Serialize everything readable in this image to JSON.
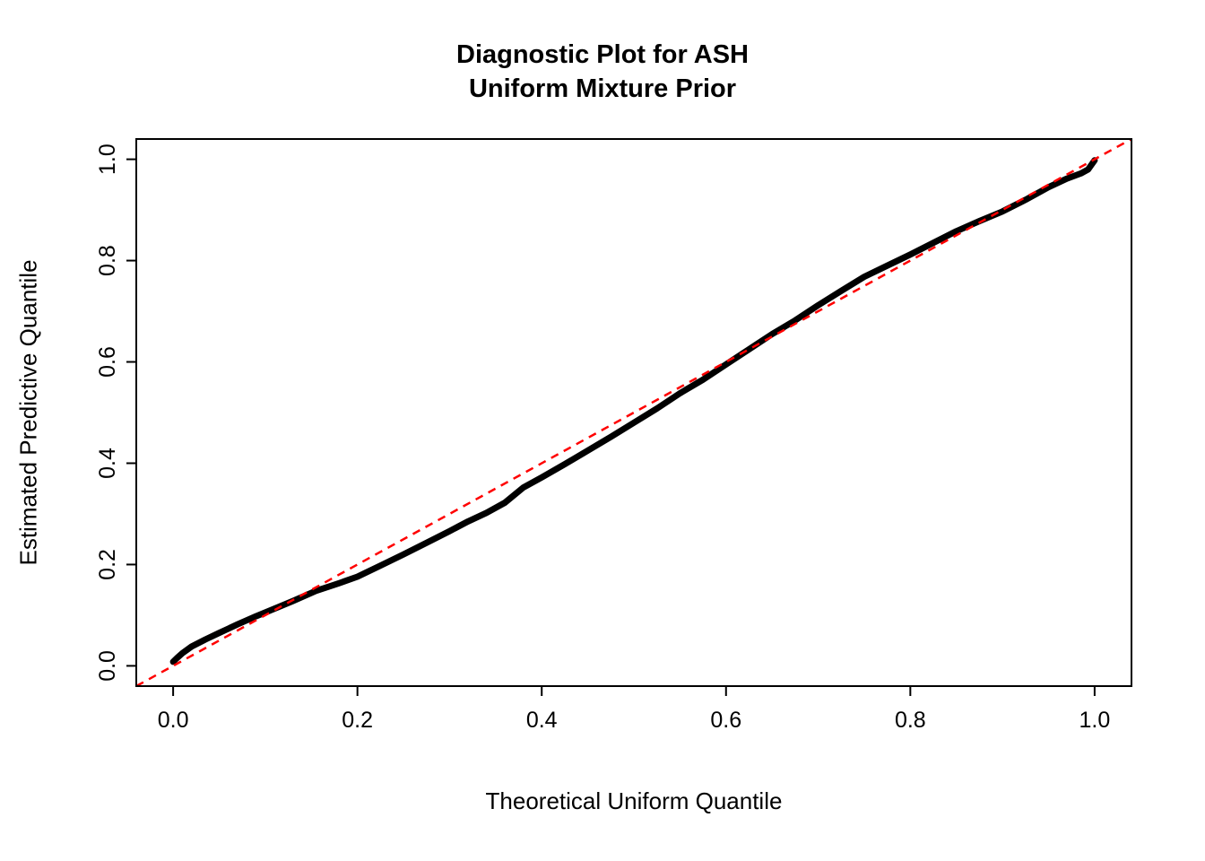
{
  "title": {
    "line1": "Diagnostic Plot for ASH",
    "line2": "Uniform Mixture Prior"
  },
  "chart_data": {
    "type": "line",
    "title": "Diagnostic Plot for ASH\nUniform Mixture Prior",
    "xlabel": "Theoretical Uniform Quantile",
    "ylabel": "Estimated Predictive Quantile",
    "xlim": [
      -0.04,
      1.04
    ],
    "ylim": [
      -0.04,
      1.04
    ],
    "xticks": [
      0.0,
      0.2,
      0.4,
      0.6,
      0.8,
      1.0
    ],
    "yticks": [
      0.0,
      0.2,
      0.4,
      0.6,
      0.8,
      1.0
    ],
    "grid": false,
    "legend": "none",
    "colors": {
      "curve": "#000000",
      "reference": "#FF0000",
      "box": "#000000"
    },
    "series": [
      {
        "name": "estimated-predictive-quantiles",
        "style": "thick-solid",
        "color": "#000000",
        "x": [
          0.0,
          0.004,
          0.01,
          0.02,
          0.035,
          0.05,
          0.07,
          0.09,
          0.11,
          0.13,
          0.155,
          0.18,
          0.2,
          0.225,
          0.25,
          0.275,
          0.3,
          0.32,
          0.34,
          0.36,
          0.38,
          0.4,
          0.425,
          0.45,
          0.475,
          0.5,
          0.525,
          0.55,
          0.575,
          0.6,
          0.625,
          0.65,
          0.675,
          0.7,
          0.725,
          0.75,
          0.775,
          0.8,
          0.825,
          0.85,
          0.875,
          0.9,
          0.925,
          0.95,
          0.97,
          0.985,
          0.993,
          1.0
        ],
        "y": [
          0.008,
          0.015,
          0.025,
          0.038,
          0.052,
          0.065,
          0.082,
          0.098,
          0.113,
          0.128,
          0.148,
          0.163,
          0.176,
          0.198,
          0.22,
          0.243,
          0.266,
          0.285,
          0.302,
          0.322,
          0.352,
          0.372,
          0.398,
          0.425,
          0.452,
          0.48,
          0.508,
          0.538,
          0.565,
          0.595,
          0.625,
          0.655,
          0.682,
          0.712,
          0.74,
          0.768,
          0.79,
          0.812,
          0.835,
          0.858,
          0.878,
          0.897,
          0.92,
          0.945,
          0.962,
          0.972,
          0.98,
          0.998
        ]
      },
      {
        "name": "identity-reference-line",
        "style": "dashed",
        "color": "#FF0000",
        "x": [
          -0.04,
          1.04
        ],
        "y": [
          -0.04,
          1.04
        ]
      }
    ]
  }
}
